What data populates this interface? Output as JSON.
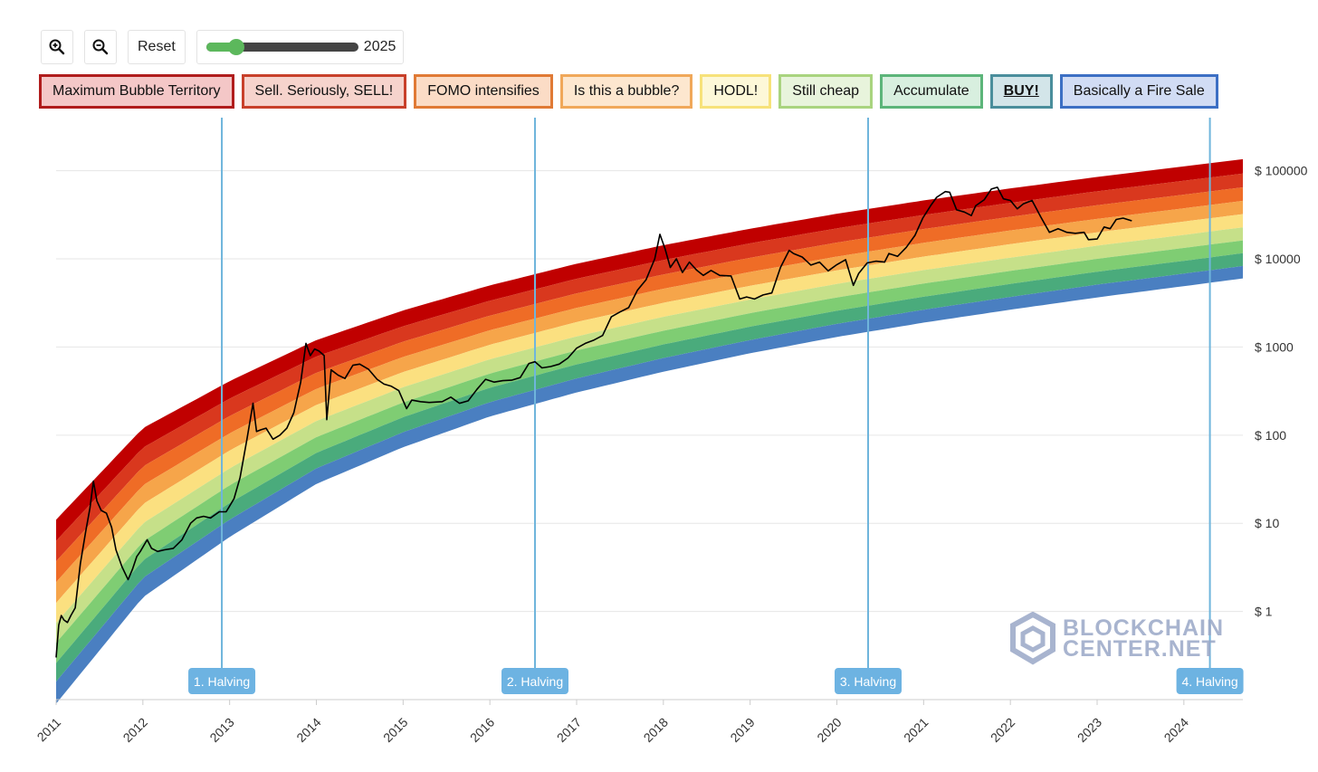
{
  "toolbar": {
    "zoom_in_icon": "zoom-in-icon",
    "zoom_out_icon": "zoom-out-icon",
    "reset_label": "Reset",
    "slider_value": "2025",
    "slider_level": 0.2
  },
  "legend": [
    {
      "label": "Maximum Bubble Territory",
      "border": "#b01c1c",
      "bg": "#f4c7c7",
      "bold": false
    },
    {
      "label": "Sell. Seriously, SELL!",
      "border": "#c8402a",
      "bg": "#f6d3cc",
      "bold": false
    },
    {
      "label": "FOMO intensifies",
      "border": "#e07a35",
      "bg": "#fbdcc6",
      "bold": false
    },
    {
      "label": "Is this a bubble?",
      "border": "#f0a85a",
      "bg": "#fde7cf",
      "bold": false
    },
    {
      "label": "HODL!",
      "border": "#f7e27a",
      "bg": "#fdf8d8",
      "bold": false
    },
    {
      "label": "Still cheap",
      "border": "#a9d47f",
      "bg": "#e8f4dc",
      "bold": false
    },
    {
      "label": "Accumulate",
      "border": "#5cb57a",
      "bg": "#d8efdf",
      "bold": false
    },
    {
      "label": "BUY!",
      "border": "#4a8e9c",
      "bg": "#d3e5e9",
      "bold": true
    },
    {
      "label": "Basically a Fire Sale",
      "border": "#3c6fc4",
      "bg": "#d1dcf4",
      "bold": false
    }
  ],
  "watermark": {
    "line1": "BLOCKCHAIN",
    "line2": "CENTER.NET"
  },
  "chart_data": {
    "type": "line",
    "y_scale": "log",
    "x_range": [
      2011.0,
      2024.68
    ],
    "y_range": [
      0.1,
      400000
    ],
    "x_ticks": [
      "2011",
      "2012",
      "2013",
      "2014",
      "2015",
      "2016",
      "2017",
      "2018",
      "2019",
      "2020",
      "2021",
      "2022",
      "2023",
      "2024"
    ],
    "y_ticks": [
      {
        "value": 1,
        "label": "$ 1"
      },
      {
        "value": 10,
        "label": "$ 10"
      },
      {
        "value": 100,
        "label": "$ 100"
      },
      {
        "value": 1000,
        "label": "$ 1000"
      },
      {
        "value": 10000,
        "label": "$ 10000"
      },
      {
        "value": 100000,
        "label": "$ 100000"
      }
    ],
    "band_colors": [
      "#c00000",
      "#d9381e",
      "#ef6c26",
      "#f6a54a",
      "#fbe080",
      "#c6e089",
      "#7fcd73",
      "#4aab7c",
      "#4a7fc1"
    ],
    "band_edges": [
      {
        "x": 2011.0,
        "values": [
          11,
          6.3,
          3.7,
          2.15,
          1.25,
          0.74,
          0.44,
          0.26,
          0.16,
          0.09
        ]
      },
      {
        "x": 2012.0,
        "values": [
          120,
          72,
          44,
          27,
          16.5,
          10,
          6.2,
          3.8,
          2.4,
          1.45
        ]
      },
      {
        "x": 2013.0,
        "values": [
          410,
          260,
          165,
          105,
          67,
          42,
          27,
          17,
          11,
          7
        ]
      },
      {
        "x": 2014.0,
        "values": [
          1200,
          780,
          510,
          335,
          220,
          145,
          95,
          63,
          42,
          28
        ]
      },
      {
        "x": 2015.0,
        "values": [
          2600,
          1720,
          1150,
          770,
          520,
          350,
          235,
          160,
          108,
          73
        ]
      },
      {
        "x": 2016.0,
        "values": [
          5000,
          3350,
          2270,
          1550,
          1060,
          725,
          500,
          345,
          237,
          163
        ]
      },
      {
        "x": 2017.0,
        "values": [
          8800,
          5950,
          4060,
          2780,
          1920,
          1320,
          915,
          635,
          440,
          305
        ]
      },
      {
        "x": 2018.0,
        "values": [
          14300,
          9700,
          6650,
          4580,
          3170,
          2200,
          1530,
          1070,
          750,
          525
        ]
      },
      {
        "x": 2019.0,
        "values": [
          22000,
          15000,
          10300,
          7100,
          4950,
          3450,
          2420,
          1700,
          1200,
          850
        ]
      },
      {
        "x": 2020.0,
        "values": [
          32500,
          22200,
          15300,
          10600,
          7400,
          5200,
          3650,
          2580,
          1830,
          1300
        ]
      },
      {
        "x": 2021.0,
        "values": [
          46000,
          31500,
          21800,
          15200,
          10600,
          7450,
          5250,
          3720,
          2650,
          1890
        ]
      },
      {
        "x": 2022.0,
        "values": [
          63000,
          43200,
          30000,
          21000,
          14700,
          10300,
          7300,
          5200,
          3700,
          2650
        ]
      },
      {
        "x": 2023.0,
        "values": [
          85000,
          58500,
          40600,
          28400,
          20000,
          14100,
          10000,
          7150,
          5100,
          3650
        ]
      },
      {
        "x": 2024.0,
        "values": [
          112000,
          77000,
          53500,
          37500,
          26500,
          18700,
          13300,
          9500,
          6800,
          4900
        ]
      },
      {
        "x": 2024.68,
        "values": [
          135000,
          93000,
          64800,
          45500,
          32200,
          22800,
          16200,
          11600,
          8300,
          6000
        ]
      }
    ],
    "series": [
      {
        "points": [
          [
            2011.0,
            0.3
          ],
          [
            2011.03,
            0.7
          ],
          [
            2011.06,
            0.9
          ],
          [
            2011.09,
            0.8
          ],
          [
            2011.13,
            0.75
          ],
          [
            2011.17,
            0.9
          ],
          [
            2011.22,
            1.1
          ],
          [
            2011.28,
            3.5
          ],
          [
            2011.34,
            8
          ],
          [
            2011.39,
            15
          ],
          [
            2011.43,
            30
          ],
          [
            2011.47,
            18
          ],
          [
            2011.52,
            14
          ],
          [
            2011.58,
            13
          ],
          [
            2011.64,
            9
          ],
          [
            2011.69,
            5
          ],
          [
            2011.76,
            3.2
          ],
          [
            2011.83,
            2.3
          ],
          [
            2011.88,
            3.0
          ],
          [
            2011.93,
            4.2
          ],
          [
            2011.97,
            4.8
          ],
          [
            2012.05,
            6.5
          ],
          [
            2012.1,
            5.2
          ],
          [
            2012.17,
            4.8
          ],
          [
            2012.25,
            5.0
          ],
          [
            2012.35,
            5.2
          ],
          [
            2012.45,
            6.5
          ],
          [
            2012.55,
            10
          ],
          [
            2012.62,
            11.5
          ],
          [
            2012.7,
            12
          ],
          [
            2012.78,
            11.5
          ],
          [
            2012.88,
            13.5
          ],
          [
            2012.96,
            13.5
          ],
          [
            2013.05,
            19
          ],
          [
            2013.12,
            33
          ],
          [
            2013.2,
            90
          ],
          [
            2013.27,
            230
          ],
          [
            2013.31,
            110
          ],
          [
            2013.36,
            115
          ],
          [
            2013.42,
            120
          ],
          [
            2013.5,
            90
          ],
          [
            2013.58,
            100
          ],
          [
            2013.66,
            120
          ],
          [
            2013.74,
            180
          ],
          [
            2013.82,
            400
          ],
          [
            2013.88,
            1100
          ],
          [
            2013.93,
            800
          ],
          [
            2013.98,
            950
          ],
          [
            2014.03,
            900
          ],
          [
            2014.09,
            800
          ],
          [
            2014.12,
            150
          ],
          [
            2014.17,
            550
          ],
          [
            2014.25,
            480
          ],
          [
            2014.33,
            440
          ],
          [
            2014.42,
            620
          ],
          [
            2014.5,
            640
          ],
          [
            2014.6,
            560
          ],
          [
            2014.7,
            430
          ],
          [
            2014.78,
            380
          ],
          [
            2014.86,
            360
          ],
          [
            2014.95,
            320
          ],
          [
            2015.04,
            200
          ],
          [
            2015.1,
            250
          ],
          [
            2015.2,
            240
          ],
          [
            2015.3,
            235
          ],
          [
            2015.45,
            240
          ],
          [
            2015.55,
            270
          ],
          [
            2015.65,
            230
          ],
          [
            2015.75,
            245
          ],
          [
            2015.85,
            330
          ],
          [
            2015.95,
            430
          ],
          [
            2016.05,
            400
          ],
          [
            2016.15,
            415
          ],
          [
            2016.25,
            420
          ],
          [
            2016.35,
            450
          ],
          [
            2016.45,
            650
          ],
          [
            2016.52,
            680
          ],
          [
            2016.6,
            580
          ],
          [
            2016.7,
            600
          ],
          [
            2016.8,
            640
          ],
          [
            2016.9,
            750
          ],
          [
            2017.0,
            970
          ],
          [
            2017.1,
            1100
          ],
          [
            2017.2,
            1200
          ],
          [
            2017.3,
            1350
          ],
          [
            2017.4,
            2200
          ],
          [
            2017.5,
            2500
          ],
          [
            2017.6,
            2800
          ],
          [
            2017.7,
            4400
          ],
          [
            2017.8,
            5800
          ],
          [
            2017.9,
            10000
          ],
          [
            2017.96,
            19000
          ],
          [
            2018.02,
            13000
          ],
          [
            2018.08,
            8000
          ],
          [
            2018.15,
            10000
          ],
          [
            2018.22,
            7000
          ],
          [
            2018.3,
            9200
          ],
          [
            2018.38,
            7500
          ],
          [
            2018.46,
            6500
          ],
          [
            2018.55,
            7400
          ],
          [
            2018.65,
            6500
          ],
          [
            2018.78,
            6400
          ],
          [
            2018.88,
            3500
          ],
          [
            2018.96,
            3700
          ],
          [
            2019.05,
            3500
          ],
          [
            2019.15,
            3900
          ],
          [
            2019.25,
            4100
          ],
          [
            2019.35,
            8000
          ],
          [
            2019.45,
            12500
          ],
          [
            2019.5,
            11500
          ],
          [
            2019.6,
            10500
          ],
          [
            2019.7,
            8500
          ],
          [
            2019.8,
            9200
          ],
          [
            2019.9,
            7300
          ],
          [
            2020.0,
            8600
          ],
          [
            2020.1,
            9800
          ],
          [
            2020.19,
            5000
          ],
          [
            2020.25,
            6800
          ],
          [
            2020.35,
            9000
          ],
          [
            2020.45,
            9400
          ],
          [
            2020.55,
            9200
          ],
          [
            2020.6,
            11500
          ],
          [
            2020.7,
            10700
          ],
          [
            2020.8,
            13500
          ],
          [
            2020.9,
            18500
          ],
          [
            2020.99,
            29000
          ],
          [
            2021.08,
            40000
          ],
          [
            2021.15,
            50000
          ],
          [
            2021.25,
            58000
          ],
          [
            2021.3,
            57000
          ],
          [
            2021.38,
            36000
          ],
          [
            2021.47,
            34000
          ],
          [
            2021.55,
            31000
          ],
          [
            2021.6,
            40000
          ],
          [
            2021.7,
            47000
          ],
          [
            2021.78,
            62000
          ],
          [
            2021.85,
            65000
          ],
          [
            2021.92,
            48000
          ],
          [
            2022.0,
            46000
          ],
          [
            2022.08,
            37000
          ],
          [
            2022.15,
            42000
          ],
          [
            2022.25,
            46000
          ],
          [
            2022.35,
            30000
          ],
          [
            2022.45,
            20000
          ],
          [
            2022.55,
            22000
          ],
          [
            2022.65,
            20000
          ],
          [
            2022.75,
            19500
          ],
          [
            2022.85,
            20000
          ],
          [
            2022.9,
            16500
          ],
          [
            2023.0,
            16800
          ],
          [
            2023.08,
            23000
          ],
          [
            2023.15,
            22000
          ],
          [
            2023.22,
            28000
          ],
          [
            2023.3,
            29000
          ],
          [
            2023.4,
            27000
          ]
        ]
      }
    ],
    "halvings": [
      {
        "x": 2012.91,
        "label": "1. Halving"
      },
      {
        "x": 2016.52,
        "label": "2. Halving"
      },
      {
        "x": 2020.36,
        "label": "3. Halving"
      },
      {
        "x": 2024.3,
        "label": "4. Halving"
      }
    ]
  }
}
